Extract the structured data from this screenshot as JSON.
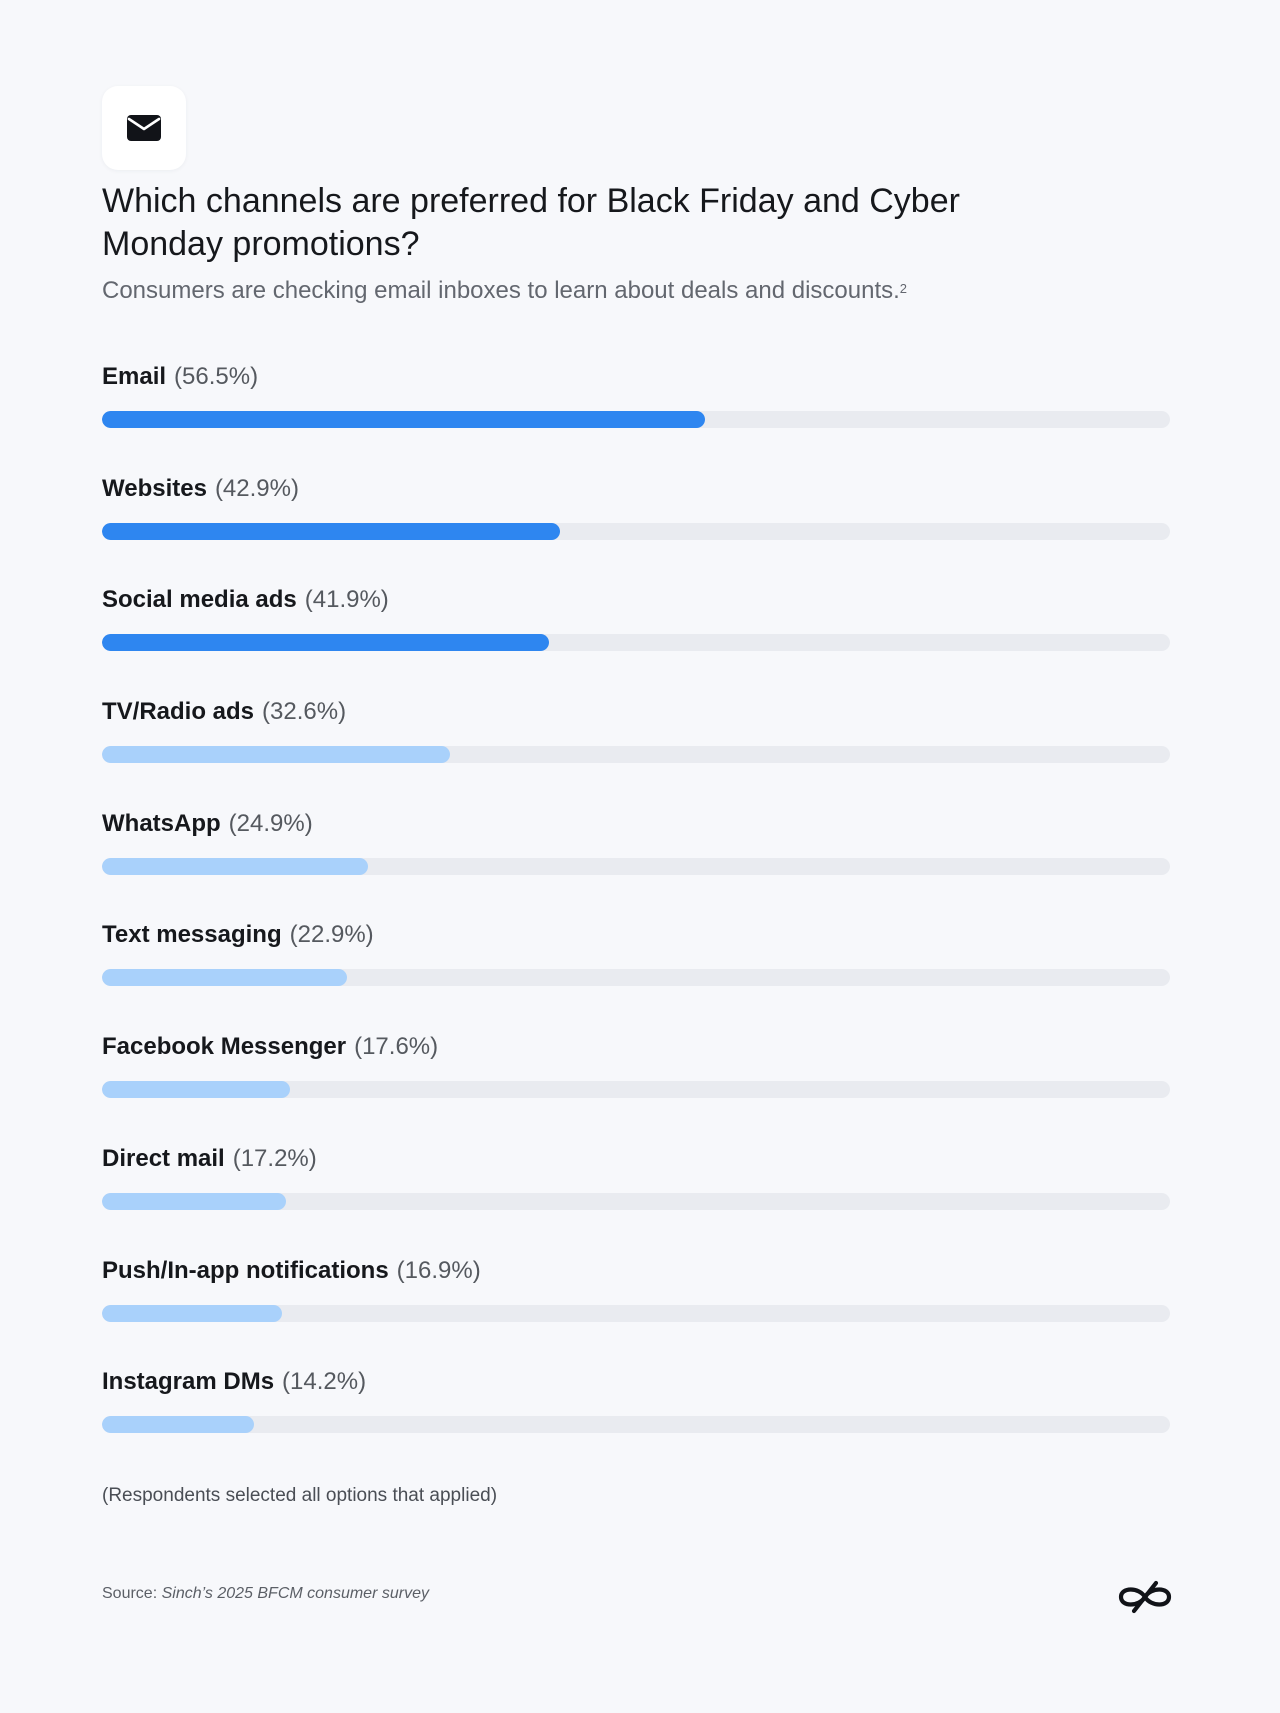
{
  "header": {
    "icon": "envelope-icon",
    "title": "Which channels are preferred for Black Friday and Cyber Monday promotions?",
    "subtitle": "Consumers are checking email inboxes to learn about deals and discounts.",
    "subtitle_footnote": "2"
  },
  "chart_data": {
    "type": "bar",
    "orientation": "horizontal",
    "xlim": [
      0,
      100
    ],
    "categories": [
      "Email",
      "Websites",
      "Social media ads",
      "TV/Radio ads",
      "WhatsApp",
      "Text messaging",
      "Facebook Messenger",
      "Direct mail",
      "Push/In-app notifications",
      "Instagram DMs"
    ],
    "values": [
      56.5,
      42.9,
      41.9,
      32.6,
      24.9,
      22.9,
      17.6,
      17.2,
      16.9,
      14.2
    ],
    "value_labels": [
      "(56.5%)",
      "(42.9%)",
      "(41.9%)",
      "(32.6%)",
      "(24.9%)",
      "(22.9%)",
      "(17.6%)",
      "(17.2%)",
      "(16.9%)",
      "(14.2%)"
    ],
    "bar_colors": [
      "#2e86f0",
      "#2e86f0",
      "#2e86f0",
      "#a9d1fb",
      "#a9d1fb",
      "#a9d1fb",
      "#a9d1fb",
      "#a9d1fb",
      "#a9d1fb",
      "#a9d1fb"
    ],
    "track_color": "#e9ebf0",
    "grid": false,
    "legend": "none"
  },
  "footer": {
    "note": "(Respondents selected all options that applied)",
    "source_prefix": "Source: ",
    "source_name": "Sinch’s 2025 BFCM consumer survey",
    "logo": "sinch-logo"
  }
}
